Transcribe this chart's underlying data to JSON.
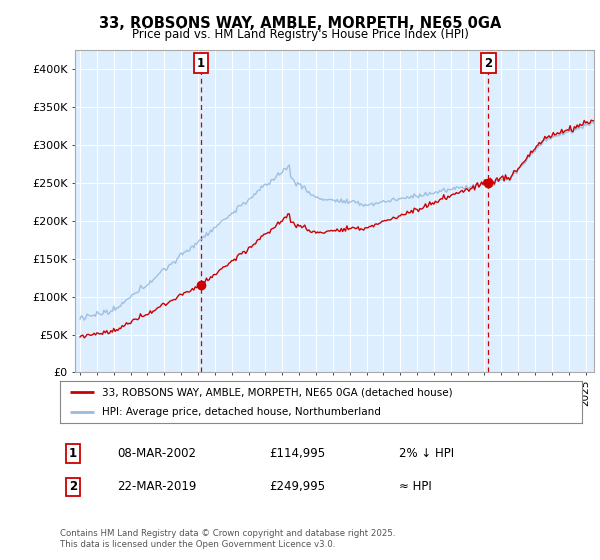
{
  "title": "33, ROBSONS WAY, AMBLE, MORPETH, NE65 0GA",
  "subtitle": "Price paid vs. HM Land Registry's House Price Index (HPI)",
  "ylabel_ticks": [
    "£0",
    "£50K",
    "£100K",
    "£150K",
    "£200K",
    "£250K",
    "£300K",
    "£350K",
    "£400K"
  ],
  "ylim": [
    0,
    420000
  ],
  "xlim_start": 1994.7,
  "xlim_end": 2025.5,
  "sale1_date": 2002.18,
  "sale1_price": 114995,
  "sale1_label": "1",
  "sale2_date": 2019.22,
  "sale2_price": 249995,
  "sale2_label": "2",
  "legend_line1": "33, ROBSONS WAY, AMBLE, MORPETH, NE65 0GA (detached house)",
  "legend_line2": "HPI: Average price, detached house, Northumberland",
  "table_row1": [
    "1",
    "08-MAR-2002",
    "£114,995",
    "2% ↓ HPI"
  ],
  "table_row2": [
    "2",
    "22-MAR-2019",
    "£249,995",
    "≈ HPI"
  ],
  "footnote": "Contains HM Land Registry data © Crown copyright and database right 2025.\nThis data is licensed under the Open Government Licence v3.0.",
  "line_color_red": "#cc0000",
  "line_color_blue": "#99bbdd",
  "plot_bg_color": "#ddeeff",
  "background_color": "#ffffff",
  "grid_color": "#ffffff",
  "dashed_color": "#cc0000",
  "marker_color": "#cc0000"
}
